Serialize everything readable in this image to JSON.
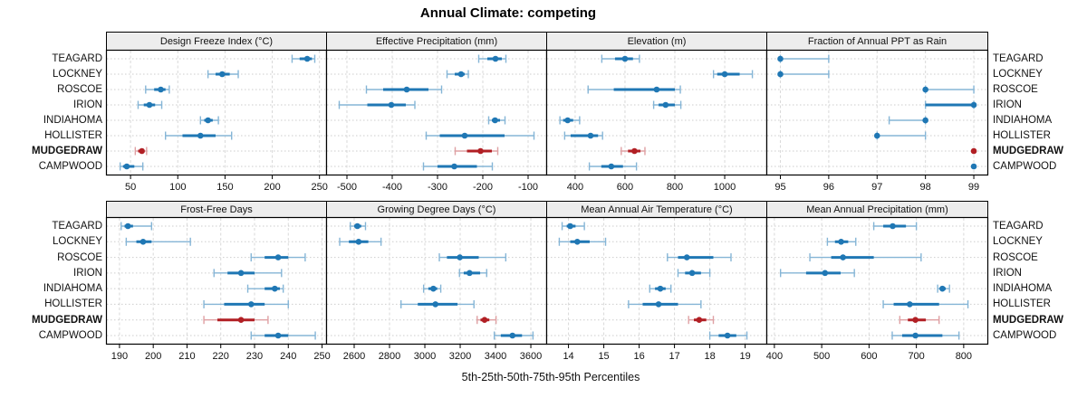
{
  "title": "Annual Climate: competing",
  "footer": "5th-25th-50th-75th-95th Percentiles",
  "sites": [
    "TEAGARD",
    "LOCKNEY",
    "ROSCOE",
    "IRION",
    "INDIAHOMA",
    "HOLLISTER",
    "MUDGEDRAW",
    "CAMPWOOD"
  ],
  "highlight_site": "MUDGEDRAW",
  "colors": {
    "series": "#1f77b4",
    "series_light": "#85b5d6",
    "highlight": "#b11f24",
    "highlight_light": "#dfa0a3",
    "strip_bg": "#ededed",
    "grid_vertical": "#d9d9d9",
    "row_guide": "#cdcdcd",
    "border": "#000000",
    "text": "#111111"
  },
  "chart_data": [
    {
      "type": "dotplot-percentiles",
      "title": "Design Freeze Index (°C)",
      "row": 0,
      "col": 0,
      "xlim": [
        24,
        257
      ],
      "ticks": [
        50,
        100,
        150,
        200,
        250
      ],
      "percentiles": [
        "p5",
        "p25",
        "p50",
        "p75",
        "p95"
      ],
      "values": [
        [
          221,
          229,
          237,
          242,
          245
        ],
        [
          132,
          140,
          147,
          155,
          164
        ],
        [
          66,
          75,
          82,
          87,
          91
        ],
        [
          58,
          64,
          70,
          76,
          83
        ],
        [
          124,
          128,
          132,
          137,
          143
        ],
        [
          87,
          105,
          124,
          140,
          157
        ],
        [
          55,
          58,
          62,
          64,
          67
        ],
        [
          39,
          42,
          46,
          54,
          63
        ]
      ]
    },
    {
      "type": "dotplot-percentiles",
      "title": "Effective Precipitation (mm)",
      "row": 0,
      "col": 1,
      "xlim": [
        -546,
        -60
      ],
      "ticks": [
        -500,
        -400,
        -300,
        -200,
        -100
      ],
      "percentiles": [
        "p5",
        "p25",
        "p50",
        "p75",
        "p95"
      ],
      "values": [
        [
          -209,
          -190,
          -172,
          -158,
          -149
        ],
        [
          -279,
          -262,
          -248,
          -240,
          -232
        ],
        [
          -457,
          -420,
          -368,
          -320,
          -291
        ],
        [
          -517,
          -455,
          -402,
          -370,
          -350
        ],
        [
          -187,
          -180,
          -173,
          -162,
          -151
        ],
        [
          -325,
          -295,
          -240,
          -152,
          -87
        ],
        [
          -261,
          -235,
          -205,
          -180,
          -167
        ],
        [
          -331,
          -300,
          -263,
          -213,
          -179
        ]
      ]
    },
    {
      "type": "dotplot-percentiles",
      "title": "Elevation (m)",
      "row": 0,
      "col": 2,
      "xlim": [
        284,
        1167
      ],
      "ticks": [
        400,
        600,
        800,
        1000
      ],
      "percentiles": [
        "p5",
        "p25",
        "p50",
        "p75",
        "p95"
      ],
      "values": [
        [
          507,
          560,
          600,
          632,
          658
        ],
        [
          955,
          970,
          1000,
          1060,
          1111
        ],
        [
          452,
          555,
          727,
          800,
          822
        ],
        [
          715,
          735,
          763,
          800,
          824
        ],
        [
          339,
          352,
          370,
          392,
          418
        ],
        [
          358,
          382,
          462,
          492,
          510
        ],
        [
          585,
          612,
          638,
          662,
          680
        ],
        [
          457,
          505,
          545,
          592,
          646
        ]
      ]
    },
    {
      "type": "dotplot-percentiles",
      "title": "Fraction of Annual PPT as Rain",
      "row": 0,
      "col": 3,
      "xlim": [
        94.71,
        99.28
      ],
      "ticks": [
        95,
        96,
        97,
        98,
        99
      ],
      "percentiles": [
        "p5",
        "p25",
        "p50",
        "p75",
        "p95"
      ],
      "values": [
        [
          95,
          95,
          95,
          95,
          96
        ],
        [
          95,
          95,
          95,
          95,
          96
        ],
        [
          98,
          98,
          98,
          98,
          99
        ],
        [
          98,
          98,
          99,
          99,
          99
        ],
        [
          97.25,
          98,
          98,
          98,
          98
        ],
        [
          97,
          97,
          97,
          97,
          98
        ],
        [
          99,
          99,
          99,
          99,
          99
        ],
        [
          99,
          99,
          99,
          99,
          99
        ]
      ]
    },
    {
      "type": "dotplot-percentiles",
      "title": "Frost-Free Days",
      "row": 1,
      "col": 0,
      "xlim": [
        186,
        251.2
      ],
      "ticks": [
        190,
        200,
        210,
        220,
        230,
        240,
        250
      ],
      "percentiles": [
        "p5",
        "p25",
        "p50",
        "p75",
        "p95"
      ],
      "values": [
        [
          190.5,
          191.5,
          192.5,
          194,
          199.5
        ],
        [
          192,
          195,
          197,
          199.5,
          211
        ],
        [
          229,
          233,
          237,
          240,
          245
        ],
        [
          218,
          222,
          226,
          230,
          238
        ],
        [
          228,
          233,
          236,
          237.5,
          238.5
        ],
        [
          215,
          221,
          229,
          233,
          240
        ],
        [
          215,
          219,
          226,
          230,
          234
        ],
        [
          229,
          233,
          237,
          240,
          248
        ]
      ]
    },
    {
      "type": "dotplot-percentiles",
      "title": "Growing Degree Days (°C)",
      "row": 1,
      "col": 1,
      "xlim": [
        2441,
        3687
      ],
      "ticks": [
        2600,
        2800,
        3000,
        3200,
        3400,
        3600
      ],
      "percentiles": [
        "p5",
        "p25",
        "p50",
        "p75",
        "p95"
      ],
      "values": [
        [
          2578,
          2600,
          2618,
          2640,
          2664
        ],
        [
          2518,
          2570,
          2625,
          2680,
          2752
        ],
        [
          3082,
          3125,
          3198,
          3305,
          3458
        ],
        [
          3196,
          3220,
          3253,
          3313,
          3350
        ],
        [
          2993,
          3020,
          3048,
          3070,
          3090
        ],
        [
          2865,
          2960,
          3060,
          3185,
          3278
        ],
        [
          3296,
          3315,
          3338,
          3365,
          3403
        ],
        [
          3393,
          3430,
          3496,
          3550,
          3612
        ]
      ]
    },
    {
      "type": "dotplot-percentiles",
      "title": "Mean Annual Air Temperature (°C)",
      "row": 1,
      "col": 2,
      "xlim": [
        13.37,
        19.6
      ],
      "ticks": [
        14,
        15,
        16,
        17,
        18,
        19
      ],
      "percentiles": [
        "p5",
        "p25",
        "p50",
        "p75",
        "p95"
      ],
      "values": [
        [
          13.82,
          13.95,
          14.05,
          14.2,
          14.45
        ],
        [
          13.74,
          14.05,
          14.25,
          14.6,
          15.05
        ],
        [
          16.8,
          17.1,
          17.35,
          18.1,
          18.6
        ],
        [
          17.1,
          17.3,
          17.5,
          17.75,
          18.0
        ],
        [
          16.3,
          16.45,
          16.6,
          16.75,
          16.9
        ],
        [
          15.7,
          16.1,
          16.55,
          17.1,
          17.75
        ],
        [
          17.4,
          17.55,
          17.7,
          17.9,
          18.1
        ],
        [
          18.0,
          18.25,
          18.5,
          18.75,
          19.05
        ]
      ]
    },
    {
      "type": "dotplot-percentiles",
      "title": "Mean Annual Precipitation (mm)",
      "row": 1,
      "col": 3,
      "xlim": [
        383,
        850
      ],
      "ticks": [
        400,
        500,
        600,
        700,
        800
      ],
      "percentiles": [
        "p5",
        "p25",
        "p50",
        "p75",
        "p95"
      ],
      "values": [
        [
          610,
          630,
          650,
          678,
          700
        ],
        [
          512,
          528,
          541,
          556,
          572
        ],
        [
          475,
          520,
          545,
          610,
          710
        ],
        [
          413,
          467,
          507,
          540,
          569
        ],
        [
          745,
          750,
          755,
          762,
          770
        ],
        [
          630,
          652,
          686,
          748,
          809
        ],
        [
          665,
          682,
          698,
          720,
          748
        ],
        [
          649,
          670,
          698,
          755,
          790
        ]
      ]
    }
  ]
}
